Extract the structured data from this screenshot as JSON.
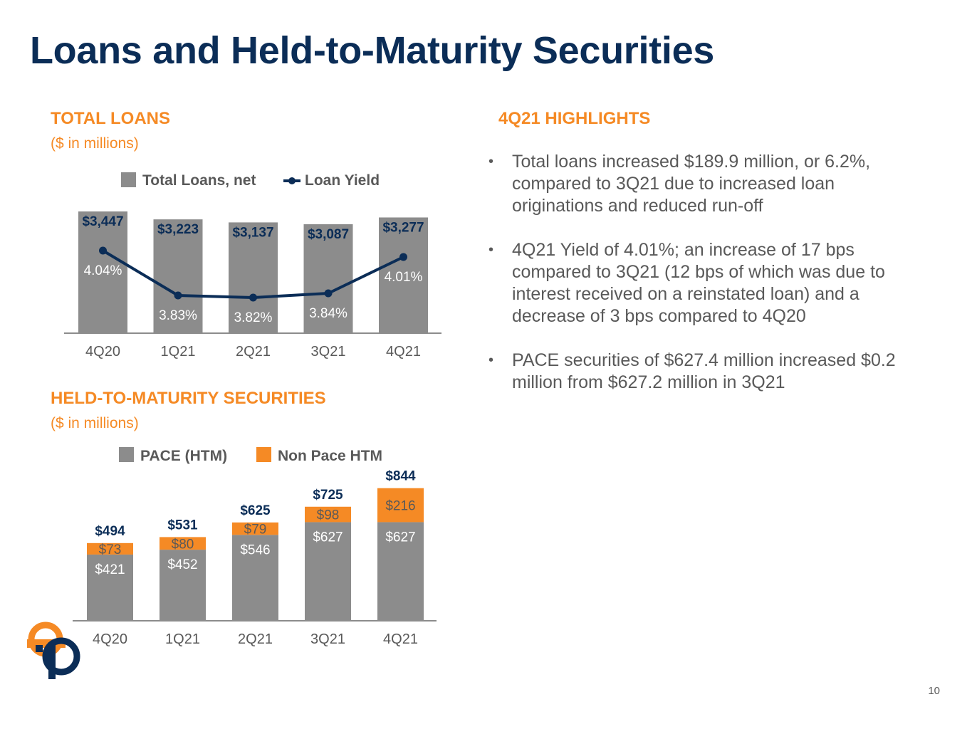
{
  "title": "Loans and Held-to-Maturity Securities",
  "colors": {
    "navy": "#0b2d57",
    "orange": "#f58a25",
    "gray": "#8c8c8c",
    "text": "#595959"
  },
  "loans_section": {
    "title": "TOTAL LOANS",
    "subtitle": "($ in millions)"
  },
  "htm_section": {
    "title": "HELD-TO-MATURITY SECURITIES",
    "subtitle": "($ in millions)"
  },
  "highlights": {
    "title": "4Q21 HIGHLIGHTS",
    "items": [
      "Total loans increased $189.9 million, or 6.2%, compared to 3Q21 due to increased loan originations and reduced run-off",
      "4Q21 Yield of 4.01%; an increase of 17 bps compared to 3Q21 (12 bps of which was due to interest received on a reinstated loan) and a decrease of 3 bps compared to 4Q20",
      "PACE securities of $627.4 million increased $0.2 million from $627.2 million in 3Q21"
    ]
  },
  "page_number": "10",
  "logo_icon": "company-logo-icon",
  "chart_data": [
    {
      "type": "bar",
      "combo": "bar+line",
      "categories": [
        "4Q20",
        "1Q21",
        "2Q21",
        "3Q21",
        "4Q21"
      ],
      "series": [
        {
          "name": "Total Loans, net",
          "type": "bar",
          "values": [
            3447,
            3223,
            3137,
            3087,
            3277
          ],
          "labels": [
            "$3,447",
            "$3,223",
            "$3,137",
            "$3,087",
            "$3,277"
          ]
        },
        {
          "name": "Loan Yield",
          "type": "line",
          "values": [
            4.04,
            3.83,
            3.82,
            3.84,
            4.01
          ],
          "labels": [
            "4.04%",
            "3.83%",
            "3.82%",
            "3.84%",
            "4.01%"
          ]
        }
      ],
      "legend": "top"
    },
    {
      "type": "bar",
      "stacked": true,
      "categories": [
        "4Q20",
        "1Q21",
        "2Q21",
        "3Q21",
        "4Q21"
      ],
      "series": [
        {
          "name": "PACE (HTM)",
          "values": [
            421,
            452,
            546,
            627,
            627
          ],
          "labels": [
            "$421",
            "$452",
            "$546",
            "$627",
            "$627"
          ]
        },
        {
          "name": "Non Pace HTM",
          "values": [
            73,
            80,
            79,
            98,
            216
          ],
          "labels": [
            "$73",
            "$80",
            "$79",
            "$98",
            "$216"
          ]
        }
      ],
      "totals": [
        494,
        531,
        625,
        725,
        844
      ],
      "total_labels": [
        "$494",
        "$531",
        "$625",
        "$725",
        "$844"
      ],
      "legend": "top"
    }
  ]
}
